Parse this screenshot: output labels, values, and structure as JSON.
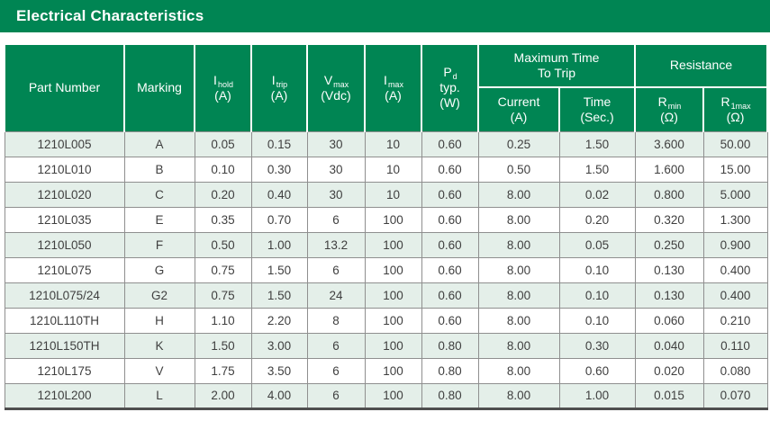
{
  "title_bar": {
    "title": "Electrical Characteristics"
  },
  "colors": {
    "brand_green": "#008553",
    "alt_row": "#e4efe9",
    "grid_line": "#8f8f8f",
    "outer_border": "#4f4f4f",
    "data_text": "#3f3f3f",
    "header_text": "#ffffff"
  },
  "table": {
    "headers": {
      "part_number": "Part Number",
      "marking": "Marking",
      "i_hold": {
        "base": "I",
        "sub": "hold",
        "unit": "(A)"
      },
      "i_trip": {
        "base": "I",
        "sub": "trip",
        "unit": "(A)"
      },
      "v_max": {
        "base": "V",
        "sub": "max",
        "unit": "(Vdc)"
      },
      "i_max": {
        "base": "I",
        "sub": "max",
        "unit": "(A)"
      },
      "p_d": {
        "base": "P",
        "sub": "d",
        "line2": "typ.",
        "unit": "(W)"
      },
      "max_time_group": {
        "line1": "Maximum Time",
        "line2": "To Trip"
      },
      "current": {
        "label": "Current",
        "unit": "(A)"
      },
      "time": {
        "label": "Time",
        "unit": "(Sec.)"
      },
      "resistance_group": "Resistance",
      "r_min": {
        "base": "R",
        "sub": "min",
        "unit": "(Ω)"
      },
      "r_1max": {
        "base": "R",
        "sub": "1max",
        "unit": "(Ω)"
      }
    },
    "rows": [
      [
        "1210L005",
        "A",
        "0.05",
        "0.15",
        "30",
        "10",
        "0.60",
        "0.25",
        "1.50",
        "3.600",
        "50.00"
      ],
      [
        "1210L010",
        "B",
        "0.10",
        "0.30",
        "30",
        "10",
        "0.60",
        "0.50",
        "1.50",
        "1.600",
        "15.00"
      ],
      [
        "1210L020",
        "C",
        "0.20",
        "0.40",
        "30",
        "10",
        "0.60",
        "8.00",
        "0.02",
        "0.800",
        "5.000"
      ],
      [
        "1210L035",
        "E",
        "0.35",
        "0.70",
        "6",
        "100",
        "0.60",
        "8.00",
        "0.20",
        "0.320",
        "1.300"
      ],
      [
        "1210L050",
        "F",
        "0.50",
        "1.00",
        "13.2",
        "100",
        "0.60",
        "8.00",
        "0.05",
        "0.250",
        "0.900"
      ],
      [
        "1210L075",
        "G",
        "0.75",
        "1.50",
        "6",
        "100",
        "0.60",
        "8.00",
        "0.10",
        "0.130",
        "0.400"
      ],
      [
        "1210L075/24",
        "G2",
        "0.75",
        "1.50",
        "24",
        "100",
        "0.60",
        "8.00",
        "0.10",
        "0.130",
        "0.400"
      ],
      [
        "1210L110TH",
        "H",
        "1.10",
        "2.20",
        "8",
        "100",
        "0.60",
        "8.00",
        "0.10",
        "0.060",
        "0.210"
      ],
      [
        "1210L150TH",
        "K",
        "1.50",
        "3.00",
        "6",
        "100",
        "0.80",
        "8.00",
        "0.30",
        "0.040",
        "0.110"
      ],
      [
        "1210L175",
        "V",
        "1.75",
        "3.50",
        "6",
        "100",
        "0.80",
        "8.00",
        "0.60",
        "0.020",
        "0.080"
      ],
      [
        "1210L200",
        "L",
        "2.00",
        "4.00",
        "6",
        "100",
        "0.80",
        "8.00",
        "1.00",
        "0.015",
        "0.070"
      ]
    ]
  }
}
